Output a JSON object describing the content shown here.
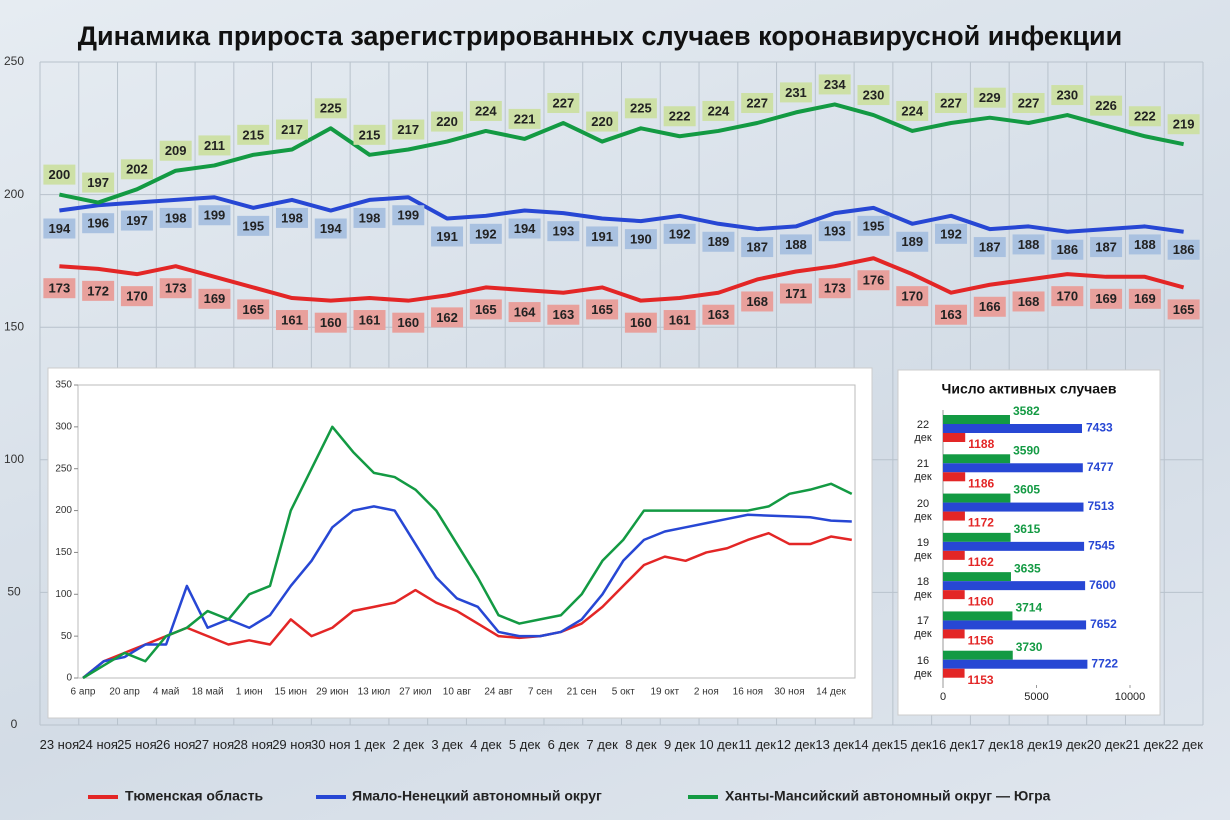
{
  "chart_data": [
    {
      "type": "line",
      "title": "Динамика прироста зарегистрированных случаев коронавирусной инфекции",
      "categories": [
        "23 ноя",
        "24 ноя",
        "25 ноя",
        "26 ноя",
        "27 ноя",
        "28 ноя",
        "29 ноя",
        "30 ноя",
        "1 дек",
        "2 дек",
        "3 дек",
        "4 дек",
        "5 дек",
        "6 дек",
        "7 дек",
        "8 дек",
        "9 дек",
        "10 дек",
        "11 дек",
        "12 дек",
        "13 дек",
        "14 дек",
        "15 дек",
        "16 дек",
        "17 дек",
        "18 дек",
        "19 дек",
        "20 дек",
        "21 дек",
        "22 дек"
      ],
      "series": [
        {
          "name": "Тюменская область",
          "color": "#e32626",
          "values": [
            173,
            172,
            170,
            173,
            169,
            165,
            161,
            160,
            161,
            160,
            162,
            165,
            164,
            163,
            165,
            160,
            161,
            163,
            168,
            171,
            173,
            176,
            170,
            163,
            166,
            168,
            170,
            169,
            169,
            165
          ]
        },
        {
          "name": "Ямало-Ненецкий автономный округ",
          "color": "#2747d4",
          "values": [
            194,
            196,
            197,
            198,
            199,
            195,
            198,
            194,
            198,
            199,
            191,
            192,
            194,
            193,
            191,
            190,
            192,
            189,
            187,
            188,
            193,
            195,
            189,
            192,
            187,
            188,
            186,
            187,
            188,
            186
          ]
        },
        {
          "name": "Ханты-Мансийский автономный округ — Югра",
          "color": "#139a43",
          "values": [
            200,
            197,
            202,
            209,
            211,
            215,
            217,
            225,
            215,
            217,
            220,
            224,
            221,
            227,
            220,
            225,
            222,
            224,
            227,
            231,
            234,
            230,
            224,
            227,
            229,
            227,
            230,
            226,
            222,
            219
          ]
        }
      ],
      "ylim": [
        0,
        250
      ],
      "yticks": [
        0,
        50,
        100,
        150,
        200,
        250
      ],
      "grid": true,
      "legend": "bottom"
    },
    {
      "type": "line",
      "categories": [
        "6 апр",
        null,
        "20 апр",
        null,
        "4 май",
        null,
        "18 май",
        null,
        "1 июн",
        null,
        "15 июн",
        null,
        "29 июн",
        null,
        "13 июл",
        null,
        "27 июл",
        null,
        "10 авг",
        null,
        "24 авг",
        null,
        "7 сен",
        null,
        "21 сен",
        null,
        "5 окт",
        null,
        "19 окт",
        null,
        "2 ноя",
        null,
        "16 ноя",
        null,
        "30 ноя",
        null,
        "14 дек",
        null
      ],
      "series": [
        {
          "color": "#e32626",
          "values": [
            0,
            20,
            30,
            40,
            50,
            60,
            50,
            40,
            45,
            40,
            70,
            50,
            60,
            80,
            85,
            90,
            105,
            90,
            80,
            65,
            50,
            48,
            50,
            55,
            65,
            85,
            110,
            135,
            145,
            140,
            150,
            155,
            165,
            173,
            160,
            160,
            169,
            165
          ]
        },
        {
          "color": "#2747d4",
          "values": [
            0,
            20,
            25,
            40,
            40,
            110,
            60,
            70,
            60,
            75,
            110,
            140,
            180,
            200,
            205,
            200,
            160,
            120,
            95,
            85,
            55,
            50,
            50,
            55,
            70,
            100,
            140,
            165,
            175,
            180,
            185,
            190,
            195,
            194,
            193,
            192,
            188,
            187
          ]
        },
        {
          "color": "#139a43",
          "values": [
            0,
            15,
            30,
            20,
            50,
            60,
            80,
            70,
            100,
            110,
            200,
            250,
            300,
            270,
            245,
            240,
            225,
            200,
            160,
            120,
            75,
            65,
            70,
            75,
            100,
            140,
            165,
            200,
            200,
            200,
            200,
            200,
            200,
            205,
            220,
            225,
            232,
            220
          ]
        }
      ],
      "ylim": [
        0,
        350
      ],
      "yticks": [
        0,
        50,
        100,
        150,
        200,
        250,
        300,
        350
      ]
    },
    {
      "type": "barh",
      "title": "Число активных случаев",
      "categories": [
        "22 дек",
        "21 дек",
        "20 дек",
        "19 дек",
        "18 дек",
        "17 дек",
        "16 дек"
      ],
      "series": [
        {
          "color": "#139a43",
          "values": [
            3582,
            3590,
            3605,
            3615,
            3635,
            3714,
            3730
          ]
        },
        {
          "color": "#2747d4",
          "values": [
            7433,
            7477,
            7513,
            7545,
            7600,
            7652,
            7722
          ]
        },
        {
          "color": "#e32626",
          "values": [
            1188,
            1186,
            1172,
            1162,
            1160,
            1156,
            1153
          ]
        }
      ],
      "xlim": [
        0,
        10000
      ],
      "xticks": [
        0,
        5000,
        10000
      ]
    }
  ]
}
